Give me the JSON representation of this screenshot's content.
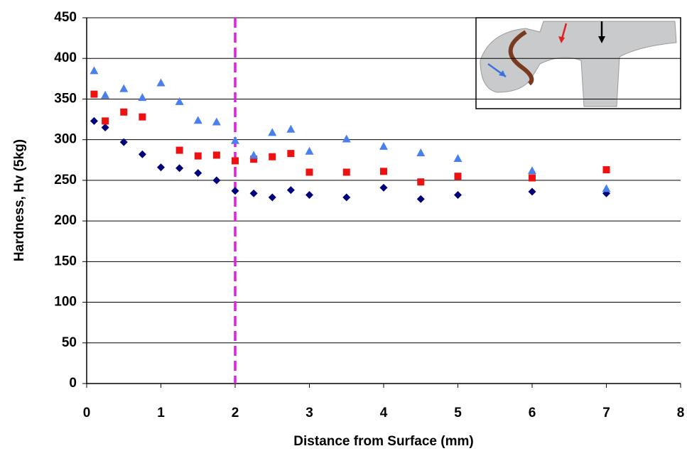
{
  "chart_data": {
    "type": "scatter",
    "x_label": "Distance from Surface (mm)",
    "y_label": "Hardness, Hv (5kg)",
    "xlim": [
      0,
      8
    ],
    "xticks": [
      0,
      1,
      2,
      3,
      4,
      5,
      6,
      7,
      8
    ],
    "ylim": [
      0,
      450
    ],
    "yticks": [
      0,
      50,
      100,
      150,
      200,
      250,
      300,
      350,
      400,
      450
    ],
    "grid": true,
    "vline": {
      "x": 2,
      "color": "#e020e0"
    },
    "series": [
      {
        "color": "#00007a",
        "marker": "diamond",
        "x": [
          0.1,
          0.25,
          0.5,
          0.75,
          1.0,
          1.25,
          1.5,
          1.75,
          2.0,
          2.25,
          2.5,
          2.75,
          3.0,
          3.5,
          4.0,
          4.5,
          5.0,
          6.0,
          7.0
        ],
        "values": [
          323,
          315,
          297,
          282,
          266,
          265,
          259,
          250,
          237,
          234,
          229,
          238,
          232,
          229,
          241,
          227,
          232,
          236,
          234
        ]
      },
      {
        "color": "#ee1111",
        "marker": "square",
        "x": [
          0.1,
          0.25,
          0.5,
          0.75,
          1.25,
          1.5,
          1.75,
          2.0,
          2.25,
          2.5,
          2.75,
          3.0,
          3.5,
          4.0,
          4.5,
          5.0,
          6.0,
          7.0
        ],
        "values": [
          356,
          323,
          334,
          328,
          287,
          280,
          281,
          274,
          276,
          279,
          283,
          260,
          260,
          261,
          248,
          255,
          253,
          263
        ]
      },
      {
        "color": "#4a80ee",
        "marker": "triangle",
        "x": [
          0.1,
          0.25,
          0.5,
          0.75,
          1.0,
          1.25,
          1.5,
          1.75,
          2.0,
          2.25,
          2.5,
          2.75,
          3.0,
          3.5,
          4.0,
          4.5,
          5.0,
          6.0,
          7.0
        ],
        "values": [
          385,
          355,
          363,
          352,
          370,
          347,
          324,
          322,
          299,
          281,
          309,
          313,
          286,
          301,
          292,
          284,
          277,
          262,
          240
        ]
      }
    ]
  }
}
